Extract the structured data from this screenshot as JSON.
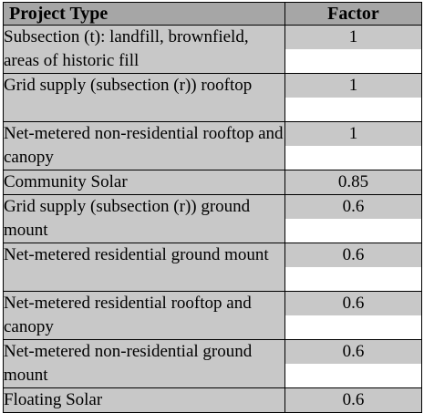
{
  "table": {
    "headers": {
      "type": "Project Type",
      "factor": "Factor"
    },
    "rows": [
      {
        "type": "Subsection (t): landfill, brownfield, areas of historic fill",
        "factor": "1"
      },
      {
        "type": "Grid supply (subsection (r)) rooftop",
        "factor": "1"
      },
      {
        "type": "Net-metered non-residential rooftop and canopy",
        "factor": "1"
      },
      {
        "type": "Community Solar",
        "factor": "0.85"
      },
      {
        "type": "Grid supply (subsection (r)) ground mount",
        "factor": "0.6"
      },
      {
        "type": "Net-metered residential ground mount",
        "factor": "0.6"
      },
      {
        "type": "Net-metered residential rooftop and canopy",
        "factor": "0.6"
      },
      {
        "type": "Net-metered non-residential ground mount",
        "factor": "0.6"
      },
      {
        "type": "Floating Solar",
        "factor": "0.6"
      }
    ]
  },
  "colors": {
    "header_background": "#a6a6a6",
    "cell_background": "#c8c8c8",
    "border": "#000000"
  }
}
